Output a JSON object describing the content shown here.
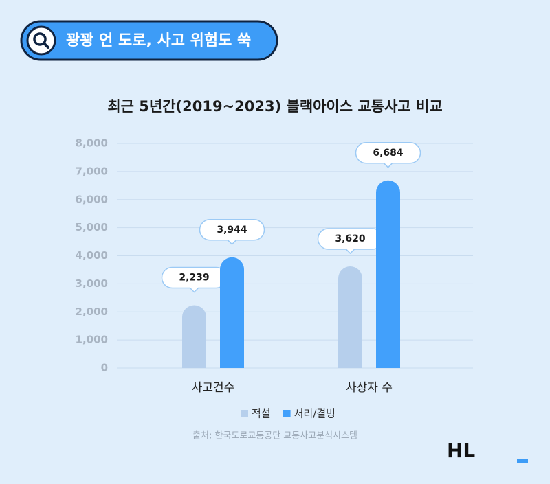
{
  "header": {
    "title": "꽝꽝 언 도로, 사고 위험도 쑥"
  },
  "chart_data": {
    "type": "bar",
    "title": "최근 5년간(2019~2023) 블랙아이스 교통사고 비교",
    "categories": [
      "사고건수",
      "사상자 수"
    ],
    "series": [
      {
        "name": "적설",
        "color": "#b6cfec",
        "values": [
          2239,
          3620
        ],
        "value_labels": [
          "2,239",
          "3,620"
        ]
      },
      {
        "name": "서리/결빙",
        "color": "#42a0fb",
        "values": [
          3944,
          6684
        ],
        "value_labels": [
          "3,944",
          "6,684"
        ]
      }
    ],
    "ylim": [
      0,
      8000
    ],
    "yticks": [
      0,
      {
        "value": 1000,
        "label": "1,000"
      },
      {
        "value": 2000,
        "label": "2,000"
      },
      {
        "value": 3000,
        "label": "3,000"
      },
      {
        "value": 4000,
        "label": "4,000"
      },
      {
        "value": 5000,
        "label": "5,000"
      },
      {
        "value": 6000,
        "label": "6,000"
      },
      {
        "value": 7000,
        "label": "7,000"
      },
      {
        "value": 8000,
        "label": "8,000"
      }
    ],
    "grid": true,
    "source": "출처: 한국도로교통공단 교통사고분석시스템"
  },
  "logo": "HL"
}
